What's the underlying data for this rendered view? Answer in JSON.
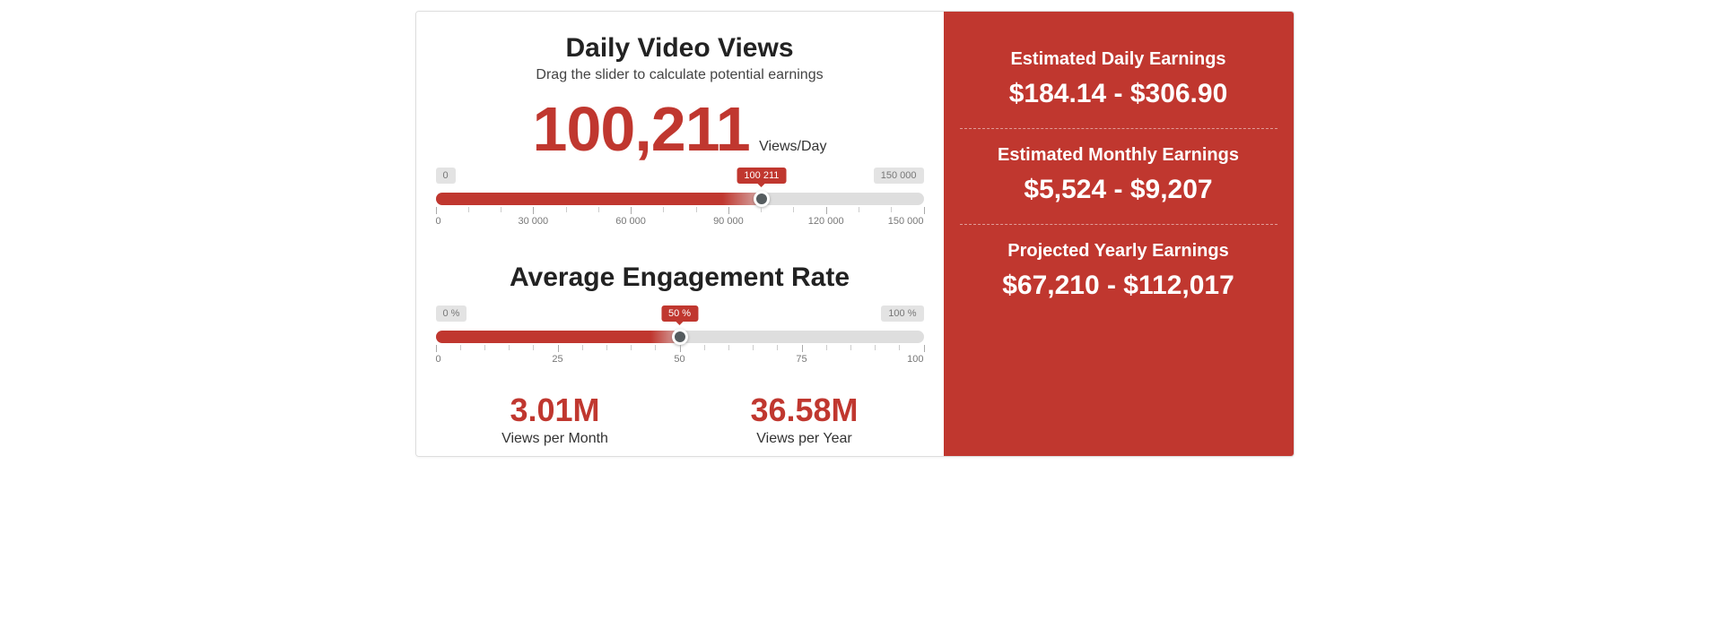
{
  "colors": {
    "accent": "#c0372f",
    "panel_bg": "#c0372f",
    "track": "#dedede",
    "thumb": "#555c5f",
    "endlabel_bg": "#e3e3e3",
    "text_dark": "#222222",
    "text_muted": "#777777"
  },
  "views": {
    "title": "Daily Video Views",
    "subtitle": "Drag the slider to calculate potential earnings",
    "value_display": "100,211",
    "unit": "Views/Day",
    "slider": {
      "min_label": "0",
      "max_label": "150 000",
      "value_label": "100 211",
      "percent": 66.8,
      "tick_labels": [
        "0",
        "30 000",
        "60 000",
        "90 000",
        "120 000",
        "150 000"
      ],
      "minor_ticks_between": 2
    }
  },
  "engagement": {
    "title": "Average Engagement Rate",
    "slider": {
      "min_label": "0 %",
      "max_label": "100 %",
      "value_label": "50 %",
      "percent": 50,
      "tick_labels": [
        "0",
        "25",
        "50",
        "75",
        "100"
      ],
      "minor_ticks_between": 4
    }
  },
  "stats": {
    "month_value": "3.01M",
    "month_label": "Views per Month",
    "year_value": "36.58M",
    "year_label": "Views per Year"
  },
  "earnings": {
    "daily": {
      "title": "Estimated Daily Earnings",
      "value": "$184.14 - $306.90"
    },
    "monthly": {
      "title": "Estimated Monthly Earnings",
      "value": "$5,524 - $9,207"
    },
    "yearly": {
      "title": "Projected Yearly Earnings",
      "value": "$67,210 - $112,017"
    }
  }
}
